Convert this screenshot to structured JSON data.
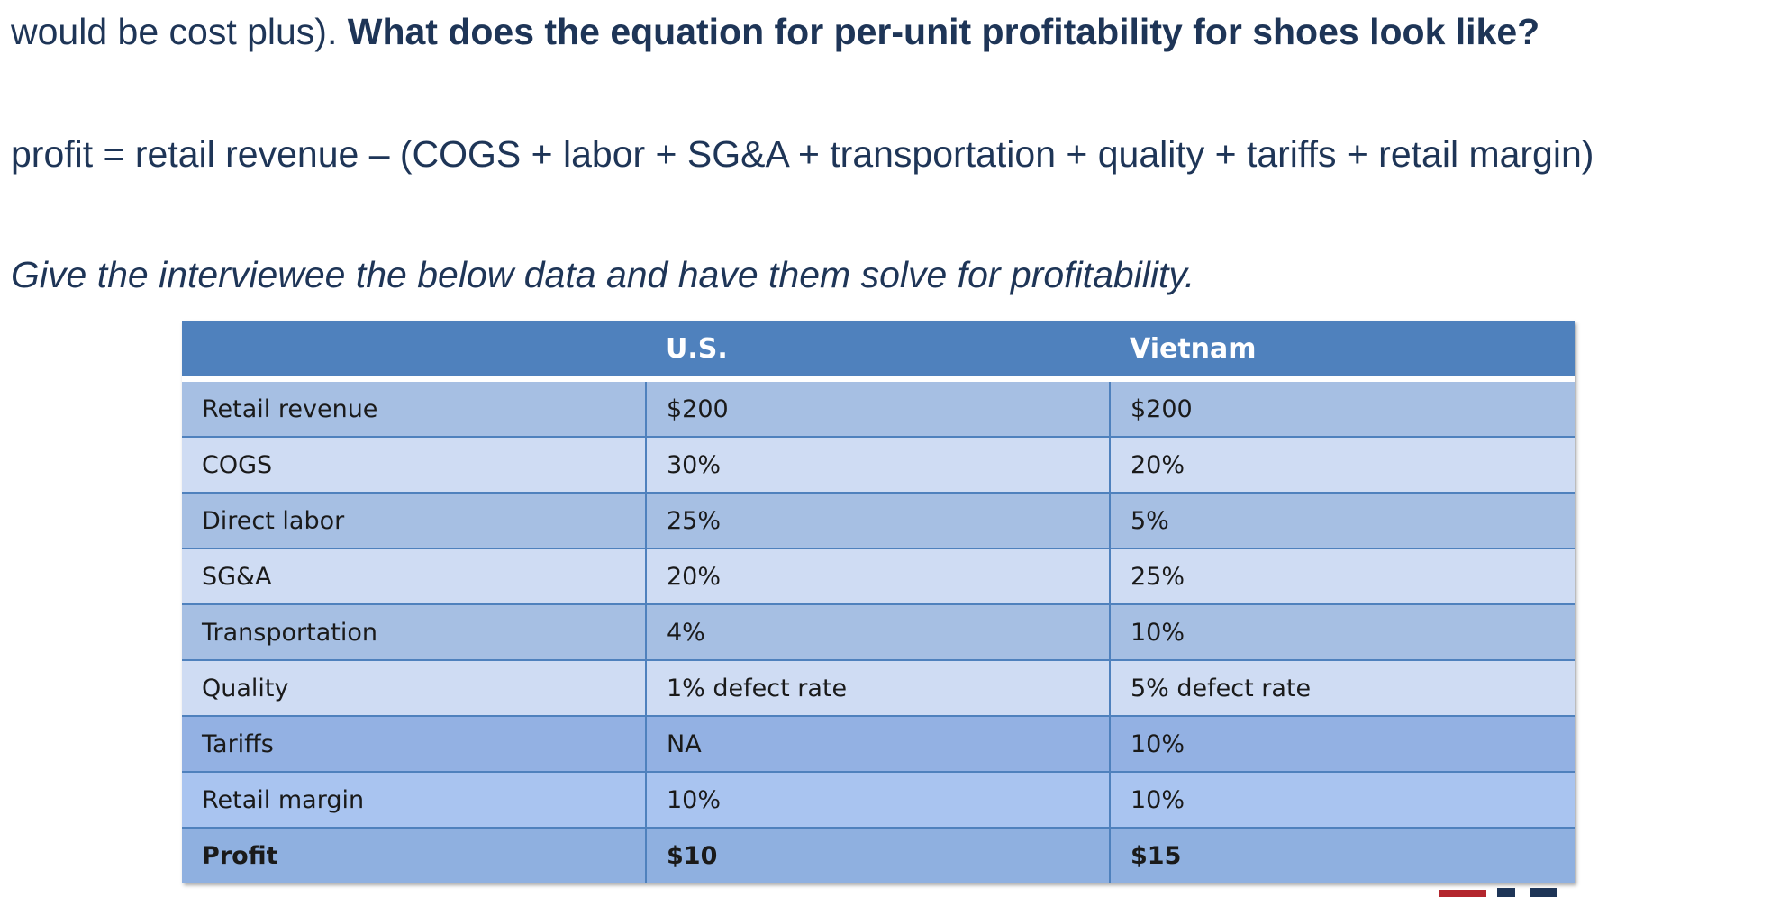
{
  "text": {
    "line1_normal": "would be cost plus). ",
    "line1_bold": "What does the equation for per-unit profitability for shoes look like?",
    "equation": "profit = retail revenue – (COGS + labor + SG&A + transportation + quality + tariffs + retail margin)",
    "instruction": "Give the interviewee the below data and have them solve for profitability."
  },
  "table": {
    "headers": [
      "",
      "U.S.",
      "Vietnam"
    ],
    "rows": [
      [
        "Retail revenue",
        "$200",
        "$200"
      ],
      [
        "COGS",
        "30%",
        "20%"
      ],
      [
        "Direct labor",
        "25%",
        "5%"
      ],
      [
        "SG&A",
        "20%",
        "25%"
      ],
      [
        "Transportation",
        "4%",
        "10%"
      ],
      [
        "Quality",
        "1% defect rate",
        "5% defect rate"
      ],
      [
        "Tariffs",
        "NA",
        "10%"
      ],
      [
        "Retail margin",
        "10%",
        "10%"
      ],
      [
        "Profit",
        "$10",
        "$15"
      ]
    ]
  },
  "colors": {
    "header_bg": "#4f81bd",
    "row_dark": "#a6bfe3",
    "row_light": "#cfdcf3",
    "text_navy": "#1e3557"
  },
  "logo": {
    "icon": "logo-fragment-icon"
  }
}
